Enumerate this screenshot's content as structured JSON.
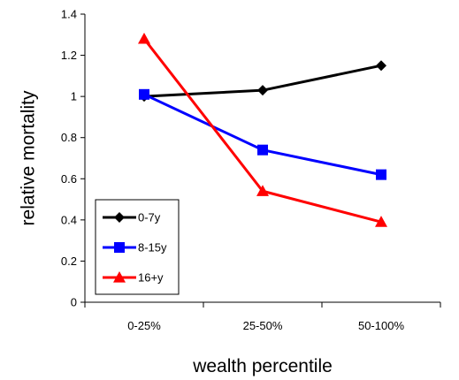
{
  "chart_data": {
    "type": "line",
    "title": "",
    "xlabel": "wealth percentile",
    "ylabel": "relative mortality",
    "categories": [
      "0-25%",
      "25-50%",
      "50-100%"
    ],
    "ylim": [
      0,
      1.4
    ],
    "yticks": [
      0,
      0.2,
      0.4,
      0.6,
      0.8,
      1,
      1.2,
      1.4
    ],
    "ytick_labels": [
      "0",
      "0.2",
      "0.4",
      "0.6",
      "0.8",
      "1",
      "1.2",
      "1.4"
    ],
    "grid": false,
    "legend": "bottom-left",
    "series": [
      {
        "name": "0-7y",
        "values": [
          1.0,
          1.03,
          1.15
        ],
        "color": "#000000",
        "marker": "diamond"
      },
      {
        "name": "8-15y",
        "values": [
          1.01,
          0.74,
          0.62
        ],
        "color": "#0000ff",
        "marker": "square"
      },
      {
        "name": "16+y",
        "values": [
          1.28,
          0.54,
          0.39
        ],
        "color": "#ff0000",
        "marker": "triangle"
      }
    ]
  }
}
